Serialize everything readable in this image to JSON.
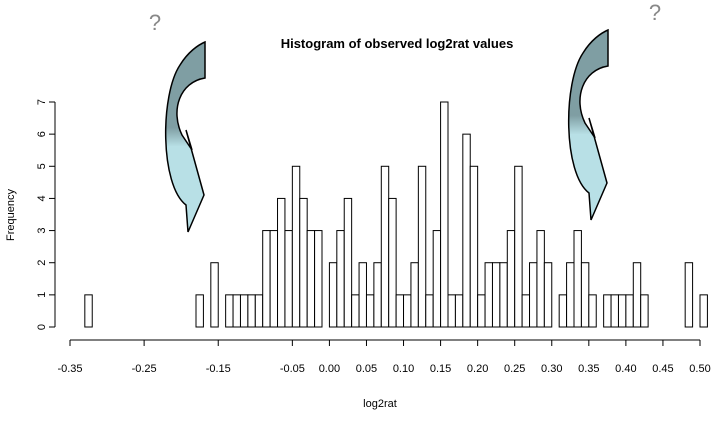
{
  "chart_data": {
    "type": "histogram",
    "title": "Histogram of observed log2rat values",
    "xlabel": "log2rat",
    "ylabel": "Frequency",
    "annotations": [
      "?",
      "?"
    ],
    "bins": [
      -0.33,
      -0.32,
      -0.31,
      -0.3,
      -0.29,
      -0.28,
      -0.27,
      -0.26,
      -0.25,
      -0.24,
      -0.23,
      -0.22,
      -0.21,
      -0.2,
      -0.19,
      -0.18,
      -0.17,
      -0.16,
      -0.15,
      -0.14,
      -0.13,
      -0.12,
      -0.11,
      -0.1,
      -0.09,
      -0.08,
      -0.07,
      -0.06,
      -0.05,
      -0.04,
      -0.03,
      -0.02,
      -0.01,
      0,
      0.01,
      0.02,
      0.03,
      0.04,
      0.05,
      0.06,
      0.07,
      0.08,
      0.09,
      0.1,
      0.11,
      0.12,
      0.13,
      0.14,
      0.15,
      0.16,
      0.17,
      0.18,
      0.19,
      0.2,
      0.21,
      0.22,
      0.23,
      0.24,
      0.25,
      0.26,
      0.27,
      0.28,
      0.29,
      0.3,
      0.31,
      0.32,
      0.33,
      0.34,
      0.35,
      0.36,
      0.37,
      0.38,
      0.39,
      0.4,
      0.41,
      0.42,
      0.43,
      0.44,
      0.45,
      0.46,
      0.47,
      0.48,
      0.49,
      0.5,
      0.51
    ],
    "values": [
      1,
      0,
      0,
      0,
      0,
      0,
      0,
      0,
      0,
      0,
      0,
      0,
      0,
      0,
      0,
      1,
      0,
      2,
      0,
      1,
      1,
      1,
      1,
      1,
      3,
      3,
      4,
      3,
      5,
      4,
      3,
      3,
      0,
      2,
      3,
      4,
      1,
      2,
      1,
      2,
      5,
      4,
      1,
      1,
      2,
      5,
      1,
      3,
      7,
      1,
      1,
      6,
      5,
      1,
      2,
      2,
      2,
      3,
      5,
      1,
      2,
      3,
      2,
      0,
      1,
      2,
      3,
      2,
      1,
      0,
      1,
      1,
      1,
      1,
      2,
      1,
      0,
      0,
      0,
      0,
      0,
      2,
      0,
      1
    ],
    "color": "#ffffff",
    "xlim": [
      -0.35,
      0.5
    ],
    "xticks": [
      -0.35,
      -0.25,
      -0.15,
      -0.05,
      {
        "value": 0,
        "label": "0.00"
      },
      0.05,
      {
        "value": 0.1,
        "label": "0.10"
      },
      0.15,
      {
        "value": 0.2,
        "label": "0.20"
      },
      0.25,
      {
        "value": 0.3,
        "label": "0.30"
      },
      0.35,
      {
        "value": 0.4,
        "label": "0.40"
      },
      0.45,
      {
        "value": 0.5,
        "label": "0.50"
      }
    ],
    "ylim": [
      0,
      7
    ],
    "yticks": [
      0,
      1,
      2,
      3,
      4,
      5,
      6,
      7
    ]
  }
}
